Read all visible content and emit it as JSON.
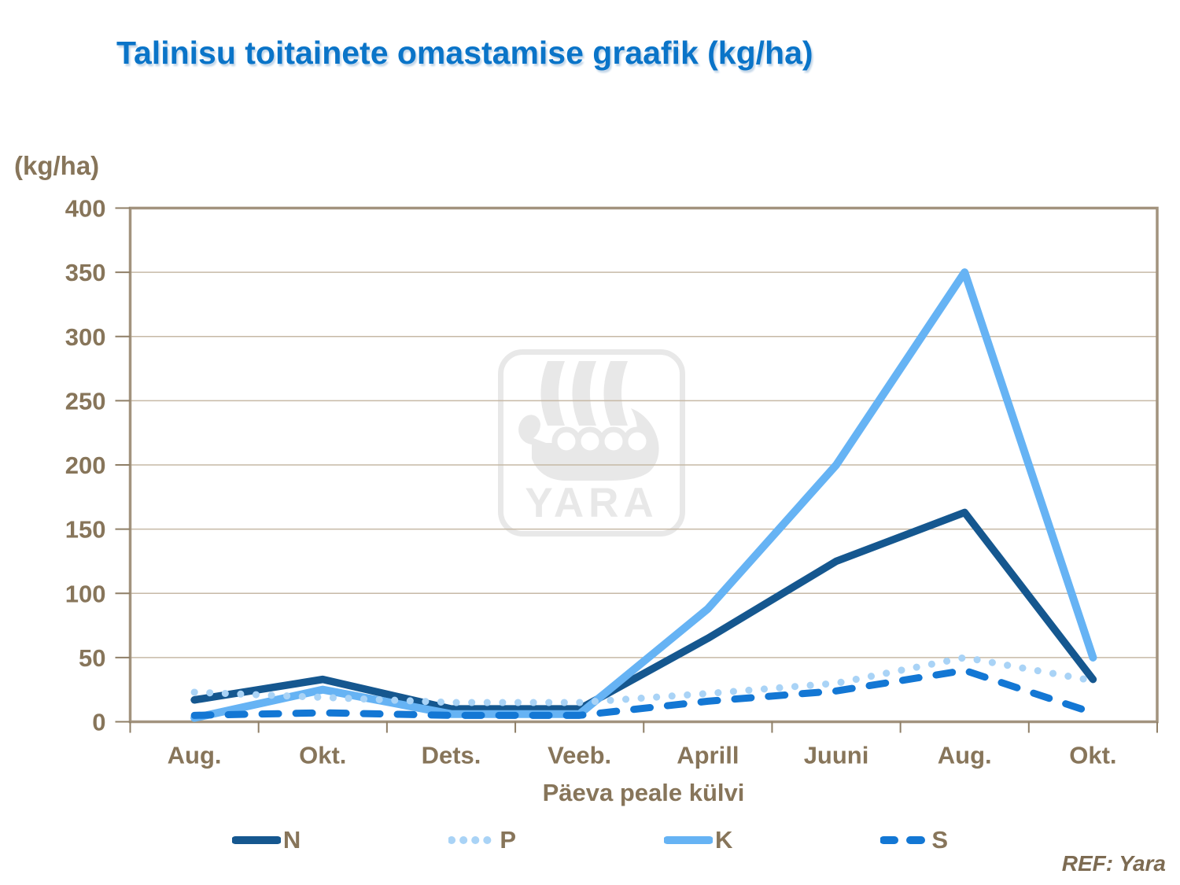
{
  "reference": "REF: Yara",
  "watermark": {
    "text": "YARA",
    "symbol": "yara-viking-ship-logo"
  },
  "colors": {
    "title": "#0A74C8",
    "axis_text": "#87755A",
    "frame": "#A2937E",
    "gridline": "#C6B9A6",
    "tick": "#8F7F67",
    "reference": "#7D6B52",
    "watermark": "#E8E8E8",
    "background": "#FFFFFF"
  },
  "chart_data": {
    "type": "line",
    "title": "Talinisu toitainete omastamise graafik (kg/ha)",
    "ylabel": "(kg/ha)",
    "xlabel": "Päeva peale külvi",
    "ylim": [
      0,
      400
    ],
    "ytick_step": 50,
    "grid": true,
    "legend_position": "bottom",
    "categories": [
      "Aug.",
      "Okt.",
      "Dets.",
      "Veeb.",
      "Aprill",
      "Juuni",
      "Aug.",
      "Okt."
    ],
    "series": [
      {
        "name": "N",
        "color": "#15578F",
        "style": "solid",
        "width": 9.5,
        "values": [
          17,
          33,
          10,
          10,
          65,
          125,
          163,
          33
        ]
      },
      {
        "name": "P",
        "color": "#A9D3F6",
        "style": "dotted",
        "width": 9,
        "values": [
          23,
          19,
          15,
          15,
          22,
          30,
          50,
          32
        ]
      },
      {
        "name": "K",
        "color": "#66B3F4",
        "style": "solid",
        "width": 10,
        "values": [
          3,
          25,
          6,
          6,
          88,
          200,
          350,
          50
        ]
      },
      {
        "name": "S",
        "color": "#1377D4",
        "style": "dashed",
        "width": 9,
        "values": [
          5,
          7,
          5,
          5,
          16,
          24,
          40,
          7
        ]
      }
    ]
  }
}
